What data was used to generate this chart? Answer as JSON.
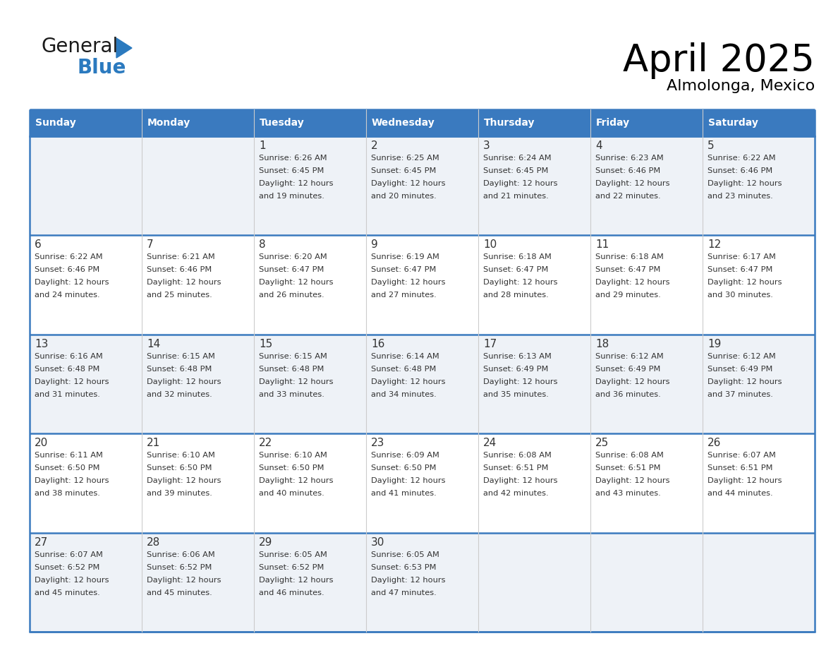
{
  "title": "April 2025",
  "subtitle": "Almolonga, Mexico",
  "header_bg": "#3a7abf",
  "header_text": "#ffffff",
  "row_bg_light": "#eef2f7",
  "row_bg_white": "#ffffff",
  "border_color": "#3a7abf",
  "sep_line_color": "#3a7abf",
  "text_color": "#333333",
  "days_of_week": [
    "Sunday",
    "Monday",
    "Tuesday",
    "Wednesday",
    "Thursday",
    "Friday",
    "Saturday"
  ],
  "calendar": [
    [
      null,
      null,
      {
        "day": 1,
        "sunrise": "6:26 AM",
        "sunset": "6:45 PM",
        "dl_min": "19"
      },
      {
        "day": 2,
        "sunrise": "6:25 AM",
        "sunset": "6:45 PM",
        "dl_min": "20"
      },
      {
        "day": 3,
        "sunrise": "6:24 AM",
        "sunset": "6:45 PM",
        "dl_min": "21"
      },
      {
        "day": 4,
        "sunrise": "6:23 AM",
        "sunset": "6:46 PM",
        "dl_min": "22"
      },
      {
        "day": 5,
        "sunrise": "6:22 AM",
        "sunset": "6:46 PM",
        "dl_min": "23"
      }
    ],
    [
      {
        "day": 6,
        "sunrise": "6:22 AM",
        "sunset": "6:46 PM",
        "dl_min": "24"
      },
      {
        "day": 7,
        "sunrise": "6:21 AM",
        "sunset": "6:46 PM",
        "dl_min": "25"
      },
      {
        "day": 8,
        "sunrise": "6:20 AM",
        "sunset": "6:47 PM",
        "dl_min": "26"
      },
      {
        "day": 9,
        "sunrise": "6:19 AM",
        "sunset": "6:47 PM",
        "dl_min": "27"
      },
      {
        "day": 10,
        "sunrise": "6:18 AM",
        "sunset": "6:47 PM",
        "dl_min": "28"
      },
      {
        "day": 11,
        "sunrise": "6:18 AM",
        "sunset": "6:47 PM",
        "dl_min": "29"
      },
      {
        "day": 12,
        "sunrise": "6:17 AM",
        "sunset": "6:47 PM",
        "dl_min": "30"
      }
    ],
    [
      {
        "day": 13,
        "sunrise": "6:16 AM",
        "sunset": "6:48 PM",
        "dl_min": "31"
      },
      {
        "day": 14,
        "sunrise": "6:15 AM",
        "sunset": "6:48 PM",
        "dl_min": "32"
      },
      {
        "day": 15,
        "sunrise": "6:15 AM",
        "sunset": "6:48 PM",
        "dl_min": "33"
      },
      {
        "day": 16,
        "sunrise": "6:14 AM",
        "sunset": "6:48 PM",
        "dl_min": "34"
      },
      {
        "day": 17,
        "sunrise": "6:13 AM",
        "sunset": "6:49 PM",
        "dl_min": "35"
      },
      {
        "day": 18,
        "sunrise": "6:12 AM",
        "sunset": "6:49 PM",
        "dl_min": "36"
      },
      {
        "day": 19,
        "sunrise": "6:12 AM",
        "sunset": "6:49 PM",
        "dl_min": "37"
      }
    ],
    [
      {
        "day": 20,
        "sunrise": "6:11 AM",
        "sunset": "6:50 PM",
        "dl_min": "38"
      },
      {
        "day": 21,
        "sunrise": "6:10 AM",
        "sunset": "6:50 PM",
        "dl_min": "39"
      },
      {
        "day": 22,
        "sunrise": "6:10 AM",
        "sunset": "6:50 PM",
        "dl_min": "40"
      },
      {
        "day": 23,
        "sunrise": "6:09 AM",
        "sunset": "6:50 PM",
        "dl_min": "41"
      },
      {
        "day": 24,
        "sunrise": "6:08 AM",
        "sunset": "6:51 PM",
        "dl_min": "42"
      },
      {
        "day": 25,
        "sunrise": "6:08 AM",
        "sunset": "6:51 PM",
        "dl_min": "43"
      },
      {
        "day": 26,
        "sunrise": "6:07 AM",
        "sunset": "6:51 PM",
        "dl_min": "44"
      }
    ],
    [
      {
        "day": 27,
        "sunrise": "6:07 AM",
        "sunset": "6:52 PM",
        "dl_min": "45"
      },
      {
        "day": 28,
        "sunrise": "6:06 AM",
        "sunset": "6:52 PM",
        "dl_min": "45"
      },
      {
        "day": 29,
        "sunrise": "6:05 AM",
        "sunset": "6:52 PM",
        "dl_min": "46"
      },
      {
        "day": 30,
        "sunrise": "6:05 AM",
        "sunset": "6:53 PM",
        "dl_min": "47"
      },
      null,
      null,
      null
    ]
  ],
  "logo_color_general": "#1a1a1a",
  "logo_color_blue": "#2b7abf",
  "logo_triangle_color": "#2b7abf"
}
